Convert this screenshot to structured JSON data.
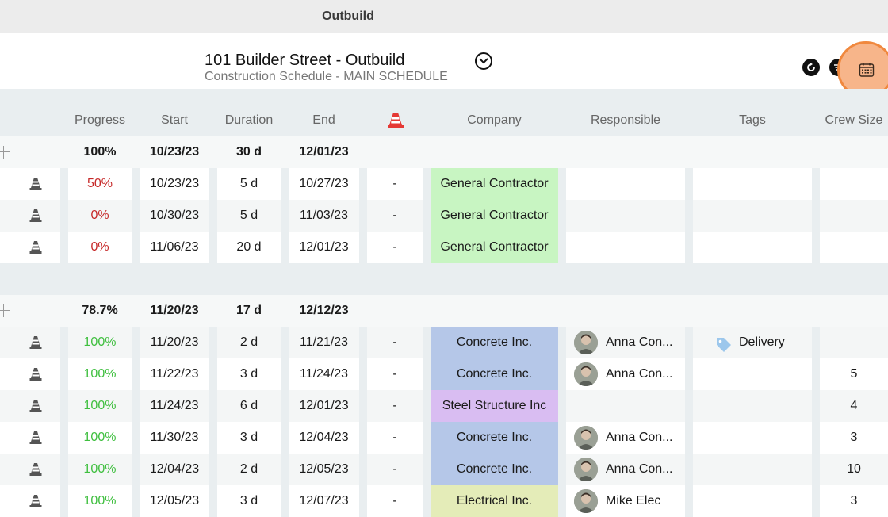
{
  "window": {
    "title": "Outbuild"
  },
  "header": {
    "project_title": "101 Builder Street - Outbuild",
    "subtitle": "Construction Schedule - MAIN SCHEDULE"
  },
  "columns": {
    "progress": "Progress",
    "start": "Start",
    "duration": "Duration",
    "end": "End",
    "company": "Company",
    "responsible": "Responsible",
    "tags": "Tags",
    "crew_size": "Crew Size"
  },
  "colors": {
    "accent": "#f0883e",
    "progress_red": "#c62828",
    "progress_green": "#3fbf3f",
    "cone": "#e53935"
  },
  "rows": [
    {
      "type": "group",
      "progress": "100%",
      "start": "10/23/23",
      "duration": "30 d",
      "end": "12/01/23"
    },
    {
      "type": "task",
      "progress": "50%",
      "progress_status": "red",
      "start": "10/23/23",
      "duration": "5 d",
      "end": "10/27/23",
      "constraint": "-",
      "company": "General Contractor",
      "company_color": "#c8f5c2",
      "responsible": "",
      "tag": "",
      "crew": ""
    },
    {
      "type": "task",
      "progress": "0%",
      "progress_status": "red",
      "start": "10/30/23",
      "duration": "5 d",
      "end": "11/03/23",
      "constraint": "-",
      "company": "General Contractor",
      "company_color": "#c8f5c2",
      "responsible": "",
      "tag": "",
      "crew": ""
    },
    {
      "type": "task",
      "progress": "0%",
      "progress_status": "red",
      "start": "11/06/23",
      "duration": "20 d",
      "end": "12/01/23",
      "constraint": "-",
      "company": "General Contractor",
      "company_color": "#c8f5c2",
      "responsible": "",
      "tag": "",
      "crew": ""
    },
    {
      "type": "spacer"
    },
    {
      "type": "group",
      "progress": "78.7%",
      "start": "11/20/23",
      "duration": "17 d",
      "end": "12/12/23"
    },
    {
      "type": "task",
      "progress": "100%",
      "progress_status": "green",
      "start": "11/20/23",
      "duration": "2 d",
      "end": "11/21/23",
      "constraint": "-",
      "company": "Concrete Inc.",
      "company_color": "#b5c7e8",
      "responsible": "Anna Con...",
      "tag": "Delivery",
      "crew": ""
    },
    {
      "type": "task",
      "progress": "100%",
      "progress_status": "green",
      "start": "11/22/23",
      "duration": "3 d",
      "end": "11/24/23",
      "constraint": "-",
      "company": "Concrete Inc.",
      "company_color": "#b5c7e8",
      "responsible": "Anna Con...",
      "tag": "",
      "crew": "5"
    },
    {
      "type": "task",
      "progress": "100%",
      "progress_status": "green",
      "start": "11/24/23",
      "duration": "6 d",
      "end": "12/01/23",
      "constraint": "-",
      "company": "Steel Structure Inc",
      "company_color": "#d9bdf2",
      "responsible": "",
      "tag": "",
      "crew": "4"
    },
    {
      "type": "task",
      "progress": "100%",
      "progress_status": "green",
      "start": "11/30/23",
      "duration": "3 d",
      "end": "12/04/23",
      "constraint": "-",
      "company": "Concrete Inc.",
      "company_color": "#b5c7e8",
      "responsible": "Anna Con...",
      "tag": "",
      "crew": "3"
    },
    {
      "type": "task",
      "progress": "100%",
      "progress_status": "green",
      "start": "12/04/23",
      "duration": "2 d",
      "end": "12/05/23",
      "constraint": "-",
      "company": "Concrete Inc.",
      "company_color": "#b5c7e8",
      "responsible": "Anna Con...",
      "tag": "",
      "crew": "10"
    },
    {
      "type": "task",
      "progress": "100%",
      "progress_status": "green",
      "start": "12/05/23",
      "duration": "3 d",
      "end": "12/07/23",
      "constraint": "-",
      "company": "Electrical Inc.",
      "company_color": "#e4ecb8",
      "responsible": "Mike Elec",
      "tag": "",
      "crew": "3"
    }
  ]
}
